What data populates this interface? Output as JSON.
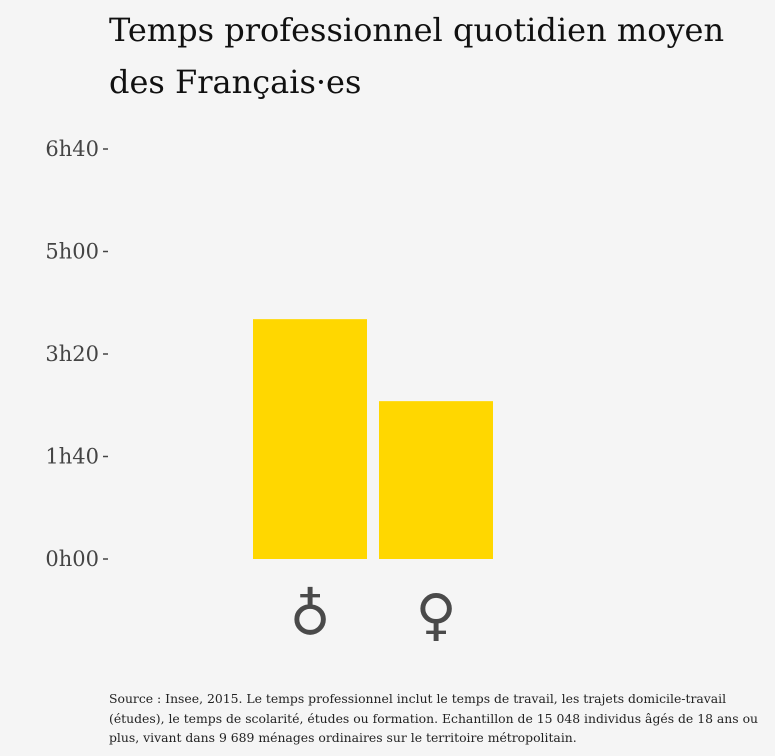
{
  "title": "Temps professionnel quotidien moyen des Français·es",
  "source": "Source : Insee, 2015. Le temps professionnel inclut le temps de travail, les trajets domicile-travail (études), le temps de scolarité, études ou formation. Echantillon de 15 048 individus âgés de 18 ans ou plus, vivant dans 9 689 ménages ordinaires sur le territoire métropolitain.",
  "colors": {
    "bar": "#ffd700",
    "background": "#f5f5f5"
  },
  "chart_data": {
    "type": "bar",
    "title": "Temps professionnel quotidien moyen des Français·es",
    "categories": [
      "♁",
      "♀"
    ],
    "category_icons": [
      "male-symbol-icon",
      "female-symbol-icon"
    ],
    "values_minutes": [
      234,
      154
    ],
    "yticks": [
      {
        "value": 0,
        "label": "0h00"
      },
      {
        "value": 100,
        "label": "1h40"
      },
      {
        "value": 200,
        "label": "3h20"
      },
      {
        "value": 300,
        "label": "5h00"
      },
      {
        "value": 400,
        "label": "6h40"
      }
    ],
    "ylim": [
      0,
      400
    ],
    "grid": false,
    "legend": "none"
  }
}
